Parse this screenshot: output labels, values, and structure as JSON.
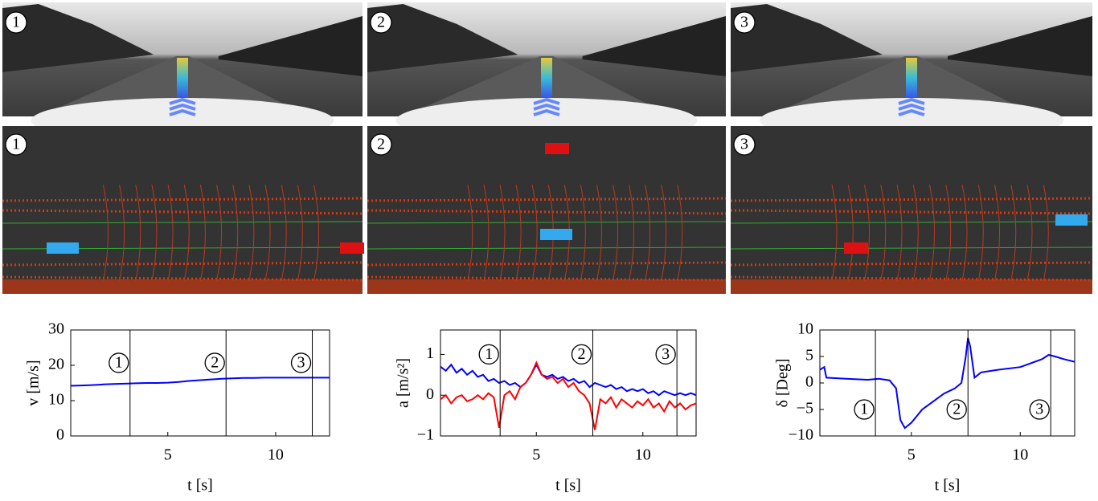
{
  "images": {
    "camera_labels": [
      "1",
      "2",
      "3"
    ],
    "lidar_labels": [
      "1",
      "2",
      "3"
    ]
  },
  "chart_data": [
    {
      "type": "line",
      "y_label": "v [m/s]",
      "x_label": "t [s]",
      "xlim": [
        0.5,
        12.5
      ],
      "xticks": [
        5,
        10
      ],
      "ylim": [
        0,
        30
      ],
      "yticks": [
        0,
        10,
        20,
        30
      ],
      "x": [
        0.5,
        1,
        1.5,
        2,
        2.5,
        3,
        3.5,
        4,
        4.5,
        5,
        5.5,
        6,
        6.5,
        7,
        7.5,
        8,
        8.5,
        9,
        9.5,
        10,
        10.5,
        11,
        11.5,
        12,
        12.5
      ],
      "series": [
        {
          "color": "#0000ff",
          "values": [
            14.2,
            14.3,
            14.4,
            14.6,
            14.7,
            14.8,
            14.9,
            15.0,
            15.0,
            15.1,
            15.3,
            15.6,
            15.8,
            16.0,
            16.2,
            16.3,
            16.4,
            16.4,
            16.5,
            16.5,
            16.5,
            16.5,
            16.5,
            16.5,
            16.5
          ]
        }
      ],
      "markers": [
        {
          "x": 3.25,
          "label": "1"
        },
        {
          "x": 7.7,
          "label": "2"
        },
        {
          "x": 11.7,
          "label": "3"
        }
      ]
    },
    {
      "type": "line",
      "y_label": "a [m/s²]",
      "x_label": "t [s]",
      "xlim": [
        0.5,
        12.5
      ],
      "xticks": [
        5,
        10
      ],
      "ylim": [
        -1,
        1.6
      ],
      "yticks": [
        {
          "value": -1,
          "label": "−1"
        },
        0,
        1
      ],
      "x": [
        0.5,
        0.75,
        1,
        1.25,
        1.5,
        1.75,
        2,
        2.25,
        2.5,
        2.75,
        3,
        3.25,
        3.5,
        3.75,
        4,
        4.25,
        4.5,
        4.75,
        5,
        5.25,
        5.5,
        5.75,
        6,
        6.25,
        6.5,
        6.75,
        7,
        7.25,
        7.5,
        7.75,
        8,
        8.25,
        8.5,
        8.75,
        9,
        9.25,
        9.5,
        9.75,
        10,
        10.25,
        10.5,
        10.75,
        11,
        11.25,
        11.5,
        11.75,
        12,
        12.25,
        12.5
      ],
      "series": [
        {
          "color": "#0000ff",
          "values": [
            0.7,
            0.6,
            0.75,
            0.55,
            0.65,
            0.5,
            0.6,
            0.45,
            0.5,
            0.35,
            0.4,
            0.3,
            0.35,
            0.25,
            0.3,
            0.2,
            0.3,
            0.5,
            0.75,
            0.5,
            0.45,
            0.5,
            0.4,
            0.45,
            0.35,
            0.4,
            0.3,
            0.35,
            0.2,
            0.3,
            0.25,
            0.2,
            0.25,
            0.15,
            0.2,
            0.1,
            0.15,
            0.1,
            0.15,
            0.05,
            0.1,
            0.0,
            0.1,
            0.05,
            0.0,
            0.05,
            0.0,
            0.05,
            0.0
          ]
        },
        {
          "color": "#ff0000",
          "values": [
            -0.1,
            0.0,
            -0.2,
            -0.05,
            0.0,
            -0.15,
            -0.1,
            0.0,
            -0.1,
            0.05,
            -0.05,
            -0.8,
            0.0,
            0.1,
            -0.1,
            0.2,
            0.3,
            0.5,
            0.8,
            0.5,
            0.4,
            0.45,
            0.3,
            0.4,
            0.2,
            0.3,
            0.1,
            0.0,
            -0.2,
            -0.85,
            -0.1,
            -0.2,
            -0.05,
            -0.3,
            -0.1,
            -0.2,
            -0.3,
            -0.15,
            -0.25,
            -0.1,
            -0.3,
            -0.2,
            -0.4,
            -0.15,
            -0.3,
            -0.2,
            -0.35,
            -0.25,
            -0.2
          ]
        }
      ],
      "markers": [
        {
          "x": 3.3,
          "label": "1"
        },
        {
          "x": 7.65,
          "label": "2"
        },
        {
          "x": 11.6,
          "label": "3"
        }
      ]
    },
    {
      "type": "line",
      "y_label": "δ [Deg]",
      "x_label": "t [s]",
      "xlim": [
        0.8,
        12.5
      ],
      "xticks": [
        5,
        10
      ],
      "ylim": [
        -10,
        10
      ],
      "yticks": [
        {
          "value": -10,
          "label": "−10"
        },
        {
          "value": -5,
          "label": "−5"
        },
        0,
        5,
        10
      ],
      "x": [
        0.8,
        1.0,
        1.1,
        2,
        3,
        3.5,
        4.0,
        4.3,
        4.5,
        4.7,
        5,
        5.5,
        6,
        6.5,
        7,
        7.3,
        7.5,
        7.6,
        7.7,
        7.9,
        8.2,
        9,
        10,
        11,
        11.3,
        11.6,
        12,
        12.5
      ],
      "series": [
        {
          "color": "#0000ff",
          "values": [
            2.5,
            3,
            1,
            0.8,
            0.6,
            0.8,
            0.5,
            -1,
            -7,
            -8.5,
            -7.5,
            -5,
            -3.5,
            -2,
            -1,
            0,
            5,
            8.5,
            7,
            1,
            2,
            2.5,
            3,
            4.5,
            5.3,
            5,
            4.5,
            4
          ]
        }
      ],
      "markers": [
        {
          "x": 3.35,
          "label": "1"
        },
        {
          "x": 7.6,
          "label": "2"
        },
        {
          "x": 11.4,
          "label": "3"
        }
      ]
    }
  ]
}
